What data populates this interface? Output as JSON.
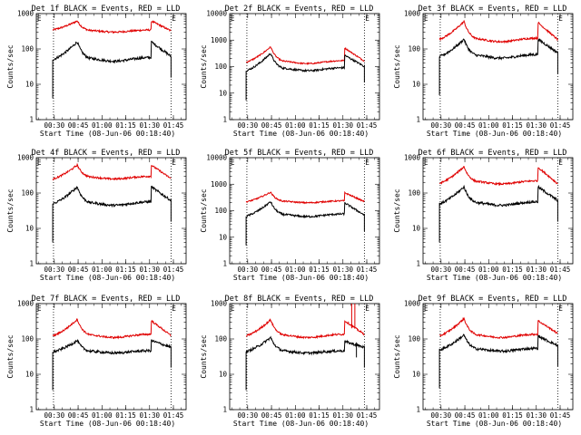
{
  "figure": {
    "start_time_label": "Start Time (08-Jun-06 00:18:40)",
    "ylabel": "Counts/sec",
    "x_tick_labels": [
      "00:30",
      "00:45",
      "01:00",
      "01:15",
      "01:30",
      "01:45"
    ],
    "y_tick_labels": [
      "1",
      "10",
      "100",
      "1000"
    ],
    "flag_marker": "E",
    "colors": {
      "events": "#000000",
      "lld": "#e00000",
      "axis": "#000000"
    }
  },
  "chart_data": [
    {
      "type": "line",
      "title": "Det 1f BLACK = Events, RED = LLD",
      "xlabel": "Start Time (08-Jun-06 00:18:40)",
      "ylabel": "Counts/sec",
      "xlim_min": [
        18.67,
        113
      ],
      "ylim": [
        1,
        1000
      ],
      "y_scale": "log",
      "markers_min": [
        29.5,
        103.5
      ],
      "data_window_min": [
        25,
        105
      ],
      "events_peaks": [
        160,
        160
      ],
      "events_trough": 45,
      "events_start": 45,
      "events_end": 55,
      "lld_peaks": [
        620,
        620
      ],
      "lld_trough": 300,
      "lld_start": 330,
      "lld_end": 300,
      "spike": false
    },
    {
      "type": "line",
      "title": "Det 2f BLACK = Events, RED = LLD",
      "xlabel": "Start Time (08-Jun-06 00:18:40)",
      "ylabel": "Counts/sec",
      "xlim_min": [
        18.67,
        113
      ],
      "ylim": [
        1,
        10000
      ],
      "y_scale": "log",
      "markers_min": [
        29.5,
        103.5
      ],
      "data_window_min": [
        25,
        105
      ],
      "events_peaks": [
        320,
        270
      ],
      "events_trough": 70,
      "events_start": 60,
      "events_end": 90,
      "lld_peaks": [
        560,
        510
      ],
      "lld_trough": 130,
      "lld_start": 130,
      "lld_end": 140,
      "spike": false
    },
    {
      "type": "line",
      "title": "Det 3f BLACK = Events, RED = LLD",
      "xlabel": "Start Time (08-Jun-06 00:18:40)",
      "ylabel": "Counts/sec",
      "xlim_min": [
        18.67,
        113
      ],
      "ylim": [
        1,
        1000
      ],
      "y_scale": "log",
      "markers_min": [
        29.5,
        103.5
      ],
      "data_window_min": [
        25,
        105
      ],
      "events_peaks": [
        190,
        190
      ],
      "events_trough": 55,
      "events_start": 55,
      "events_end": 70,
      "lld_peaks": [
        600,
        560
      ],
      "lld_trough": 160,
      "lld_start": 170,
      "lld_end": 160,
      "spike": false
    },
    {
      "type": "line",
      "title": "Det 4f BLACK = Events, RED = LLD",
      "xlabel": "Start Time (08-Jun-06 00:18:40)",
      "ylabel": "Counts/sec",
      "xlim_min": [
        18.67,
        113
      ],
      "ylim": [
        1,
        1000
      ],
      "y_scale": "log",
      "markers_min": [
        29.5,
        103.5
      ],
      "data_window_min": [
        25,
        105
      ],
      "events_peaks": [
        150,
        150
      ],
      "events_trough": 45,
      "events_start": 45,
      "events_end": 55,
      "lld_peaks": [
        620,
        620
      ],
      "lld_trough": 250,
      "lld_start": 230,
      "lld_end": 230,
      "spike": false
    },
    {
      "type": "line",
      "title": "Det 5f BLACK = Events, RED = LLD",
      "xlabel": "Start Time (08-Jun-06 00:18:40)",
      "ylabel": "Counts/sec",
      "xlim_min": [
        18.67,
        113
      ],
      "ylim": [
        1,
        10000
      ],
      "y_scale": "log",
      "markers_min": [
        29.5,
        103.5
      ],
      "data_window_min": [
        25,
        105
      ],
      "events_peaks": [
        220,
        200
      ],
      "events_trough": 60,
      "events_start": 55,
      "events_end": 60,
      "lld_peaks": [
        500,
        480
      ],
      "lld_trough": 200,
      "lld_start": 200,
      "lld_end": 200,
      "spike": false
    },
    {
      "type": "line",
      "title": "Det 6f BLACK = Events, RED = LLD",
      "xlabel": "Start Time (08-Jun-06 00:18:40)",
      "ylabel": "Counts/sec",
      "xlim_min": [
        18.67,
        113
      ],
      "ylim": [
        1,
        1000
      ],
      "y_scale": "log",
      "markers_min": [
        29.5,
        103.5
      ],
      "data_window_min": [
        25,
        105
      ],
      "events_peaks": [
        150,
        150
      ],
      "events_trough": 45,
      "events_start": 45,
      "events_end": 55,
      "lld_peaks": [
        560,
        540
      ],
      "lld_trough": 180,
      "lld_start": 170,
      "lld_end": 160,
      "spike": false
    },
    {
      "type": "line",
      "title": "Det 7f BLACK = Events, RED = LLD",
      "xlabel": "Start Time (08-Jun-06 00:18:40)",
      "ylabel": "Counts/sec",
      "xlim_min": [
        18.67,
        113
      ],
      "ylim": [
        1,
        1000
      ],
      "y_scale": "log",
      "markers_min": [
        29.5,
        103.5
      ],
      "data_window_min": [
        25,
        105
      ],
      "events_peaks": [
        90,
        90
      ],
      "events_trough": 40,
      "events_start": 40,
      "events_end": 55,
      "lld_peaks": [
        360,
        330
      ],
      "lld_trough": 110,
      "lld_start": 110,
      "lld_end": 110,
      "spike": false
    },
    {
      "type": "line",
      "title": "Det 8f BLACK = Events, RED = LLD",
      "xlabel": "Start Time (08-Jun-06 00:18:40)",
      "ylabel": "Counts/sec",
      "xlim_min": [
        18.67,
        113
      ],
      "ylim": [
        1,
        1000
      ],
      "y_scale": "log",
      "markers_min": [
        29.5,
        103.5
      ],
      "data_window_min": [
        25,
        105
      ],
      "events_peaks": [
        110,
        85
      ],
      "events_trough": 40,
      "events_start": 40,
      "events_end": 55,
      "lld_peaks": [
        350,
        330
      ],
      "lld_trough": 110,
      "lld_start": 110,
      "lld_end": 120,
      "spike": true
    },
    {
      "type": "line",
      "title": "Det 9f BLACK = Events, RED = LLD",
      "xlabel": "Start Time (08-Jun-06 00:18:40)",
      "ylabel": "Counts/sec",
      "xlim_min": [
        18.67,
        113
      ],
      "ylim": [
        1,
        1000
      ],
      "y_scale": "log",
      "markers_min": [
        29.5,
        103.5
      ],
      "data_window_min": [
        25,
        105
      ],
      "events_peaks": [
        130,
        120
      ],
      "events_trough": 45,
      "events_start": 45,
      "events_end": 60,
      "lld_peaks": [
        380,
        330
      ],
      "lld_trough": 110,
      "lld_start": 110,
      "lld_end": 130,
      "spike": false
    }
  ]
}
